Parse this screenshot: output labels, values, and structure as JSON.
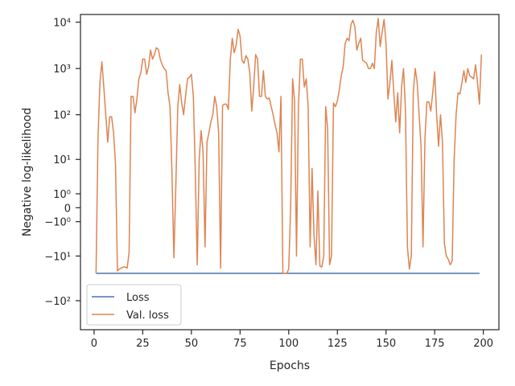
{
  "chart_data": {
    "type": "line",
    "title": "",
    "xlabel": "Epochs",
    "ylabel": "Negative log-likelihood",
    "y_scale": "symlog",
    "x_ticks": [
      0,
      25,
      50,
      75,
      100,
      125,
      150,
      175,
      200
    ],
    "y_ticks": [
      {
        "value": 10000,
        "label": "10⁴"
      },
      {
        "value": 1000,
        "label": "10³"
      },
      {
        "value": 100,
        "label": "10²"
      },
      {
        "value": 10,
        "label": "10¹"
      },
      {
        "value": 1,
        "label": "10⁰"
      },
      {
        "value": 0,
        "label": "0"
      },
      {
        "value": -1,
        "label": "−10⁰"
      },
      {
        "value": -10,
        "label": "−10¹"
      },
      {
        "value": -100,
        "label": "−10²"
      }
    ],
    "xlim": [
      -7,
      208
    ],
    "grid": false,
    "legend_position": "lower-left",
    "series": [
      {
        "name": "Loss",
        "color": "#4c72b0",
        "points": [
          [
            1,
            -25
          ],
          [
            198,
            -25
          ]
        ]
      },
      {
        "name": "Val. loss",
        "color": "#dd8452",
        "points": [
          [
            1,
            -25
          ],
          [
            2,
            30
          ],
          [
            3,
            500
          ],
          [
            4,
            1400
          ],
          [
            5,
            400
          ],
          [
            6,
            100
          ],
          [
            7,
            25
          ],
          [
            8,
            90
          ],
          [
            9,
            90
          ],
          [
            10,
            40
          ],
          [
            11,
            8
          ],
          [
            12,
            -22
          ],
          [
            13,
            -20
          ],
          [
            14,
            -19
          ],
          [
            15,
            -18
          ],
          [
            16,
            -18
          ],
          [
            17,
            -19
          ],
          [
            18,
            -8
          ],
          [
            19,
            250
          ],
          [
            20,
            250
          ],
          [
            21,
            110
          ],
          [
            22,
            220
          ],
          [
            23,
            600
          ],
          [
            24,
            800
          ],
          [
            25,
            1600
          ],
          [
            26,
            1600
          ],
          [
            27,
            750
          ],
          [
            28,
            1100
          ],
          [
            29,
            2500
          ],
          [
            30,
            1600
          ],
          [
            31,
            2000
          ],
          [
            32,
            2800
          ],
          [
            33,
            2600
          ],
          [
            34,
            1600
          ],
          [
            35,
            1200
          ],
          [
            36,
            1000
          ],
          [
            37,
            900
          ],
          [
            38,
            300
          ],
          [
            39,
            150
          ],
          [
            40,
            5
          ],
          [
            41,
            -11
          ],
          [
            42,
            2
          ],
          [
            43,
            150
          ],
          [
            44,
            450
          ],
          [
            45,
            180
          ],
          [
            46,
            100
          ],
          [
            47,
            250
          ],
          [
            48,
            600
          ],
          [
            49,
            650
          ],
          [
            50,
            750
          ],
          [
            51,
            250
          ],
          [
            52,
            5
          ],
          [
            53,
            -16
          ],
          [
            54,
            10
          ],
          [
            55,
            45
          ],
          [
            56,
            15
          ],
          [
            57,
            -6
          ],
          [
            58,
            25
          ],
          [
            59,
            40
          ],
          [
            60,
            70
          ],
          [
            61,
            100
          ],
          [
            62,
            250
          ],
          [
            63,
            150
          ],
          [
            64,
            40
          ],
          [
            65,
            -19
          ],
          [
            66,
            160
          ],
          [
            67,
            170
          ],
          [
            68,
            170
          ],
          [
            69,
            130
          ],
          [
            70,
            1600
          ],
          [
            71,
            4500
          ],
          [
            72,
            2200
          ],
          [
            73,
            3200
          ],
          [
            74,
            7000
          ],
          [
            75,
            5000
          ],
          [
            76,
            1500
          ],
          [
            77,
            1300
          ],
          [
            78,
            1900
          ],
          [
            79,
            1600
          ],
          [
            80,
            800
          ],
          [
            81,
            120
          ],
          [
            82,
            400
          ],
          [
            83,
            2000
          ],
          [
            84,
            1600
          ],
          [
            85,
            250
          ],
          [
            86,
            250
          ],
          [
            87,
            900
          ],
          [
            88,
            250
          ],
          [
            89,
            220
          ],
          [
            90,
            230
          ],
          [
            91,
            150
          ],
          [
            92,
            100
          ],
          [
            93,
            60
          ],
          [
            94,
            40
          ],
          [
            95,
            15
          ],
          [
            96,
            250
          ],
          [
            97,
            -25
          ],
          [
            98,
            -25
          ],
          [
            99,
            -25
          ],
          [
            100,
            -20
          ],
          [
            101,
            0
          ],
          [
            102,
            600
          ],
          [
            103,
            200
          ],
          [
            104,
            -10
          ],
          [
            105,
            150
          ],
          [
            106,
            1600
          ],
          [
            107,
            1600
          ],
          [
            108,
            400
          ],
          [
            109,
            600
          ],
          [
            110,
            150
          ],
          [
            111,
            -6
          ],
          [
            112,
            6
          ],
          [
            113,
            -3
          ],
          [
            114,
            -16
          ],
          [
            115,
            1.3
          ],
          [
            116,
            -17
          ],
          [
            117,
            -18
          ],
          [
            118,
            -10
          ],
          [
            119,
            150
          ],
          [
            120,
            50
          ],
          [
            121,
            -16
          ],
          [
            122,
            -10
          ],
          [
            123,
            180
          ],
          [
            124,
            150
          ],
          [
            125,
            200
          ],
          [
            126,
            350
          ],
          [
            127,
            700
          ],
          [
            128,
            1100
          ],
          [
            129,
            3500
          ],
          [
            130,
            4500
          ],
          [
            131,
            4000
          ],
          [
            132,
            9000
          ],
          [
            133,
            11000
          ],
          [
            134,
            8000
          ],
          [
            135,
            2500
          ],
          [
            136,
            3500
          ],
          [
            137,
            4500
          ],
          [
            138,
            1500
          ],
          [
            139,
            1400
          ],
          [
            140,
            1300
          ],
          [
            141,
            1000
          ],
          [
            142,
            1000
          ],
          [
            143,
            1300
          ],
          [
            144,
            1000
          ],
          [
            145,
            6000
          ],
          [
            146,
            12000
          ],
          [
            147,
            3000
          ],
          [
            148,
            6000
          ],
          [
            149,
            11500
          ],
          [
            150,
            3500
          ],
          [
            151,
            220
          ],
          [
            152,
            500
          ],
          [
            153,
            1500
          ],
          [
            154,
            300
          ],
          [
            155,
            70
          ],
          [
            156,
            300
          ],
          [
            157,
            40
          ],
          [
            158,
            400
          ],
          [
            159,
            1000
          ],
          [
            160,
            120
          ],
          [
            161,
            -6
          ],
          [
            162,
            -20
          ],
          [
            163,
            -10
          ],
          [
            164,
            300
          ],
          [
            165,
            1000
          ],
          [
            166,
            500
          ],
          [
            167,
            100
          ],
          [
            168,
            20
          ],
          [
            169,
            -6
          ],
          [
            170,
            30
          ],
          [
            171,
            190
          ],
          [
            172,
            190
          ],
          [
            173,
            120
          ],
          [
            174,
            300
          ],
          [
            175,
            850
          ],
          [
            176,
            100
          ],
          [
            177,
            20
          ],
          [
            178,
            100
          ],
          [
            179,
            25
          ],
          [
            180,
            -5
          ],
          [
            181,
            -10
          ],
          [
            182,
            -12
          ],
          [
            183,
            -16
          ],
          [
            184,
            -13
          ],
          [
            185,
            10
          ],
          [
            186,
            100
          ],
          [
            187,
            300
          ],
          [
            188,
            280
          ],
          [
            189,
            500
          ],
          [
            190,
            900
          ],
          [
            191,
            500
          ],
          [
            192,
            1000
          ],
          [
            193,
            700
          ],
          [
            194,
            650
          ],
          [
            195,
            600
          ],
          [
            196,
            1200
          ],
          [
            197,
            500
          ],
          [
            198,
            170
          ],
          [
            199,
            2000
          ]
        ]
      }
    ]
  }
}
